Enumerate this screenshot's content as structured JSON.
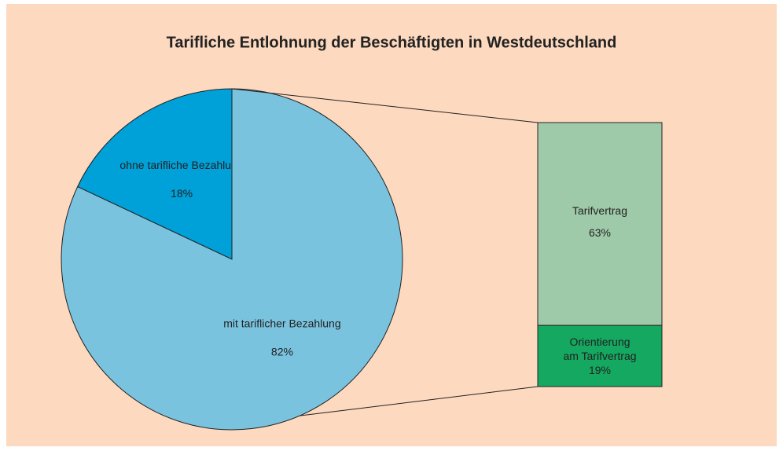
{
  "chart_data": {
    "type": "pie",
    "title": "Tarifliche Entlohnung der Beschäftigten in Westdeutschland",
    "categories": [
      "ohne tarifliche Bezahlung",
      "mit tariflicher Bezahlung"
    ],
    "values": [
      18,
      82
    ],
    "value_labels": [
      "18%",
      "82%"
    ],
    "colors": [
      "#00a0d8",
      "#7ac3df"
    ],
    "background": "#fdd9bf",
    "breakdown": {
      "categories": [
        "Tarifvertrag",
        "Orientierung\nam Tarifvertrag"
      ],
      "values": [
        63,
        19
      ],
      "value_labels": [
        "63%",
        "19%"
      ],
      "colors": [
        "#9fcaa9",
        "#14a860"
      ]
    }
  }
}
